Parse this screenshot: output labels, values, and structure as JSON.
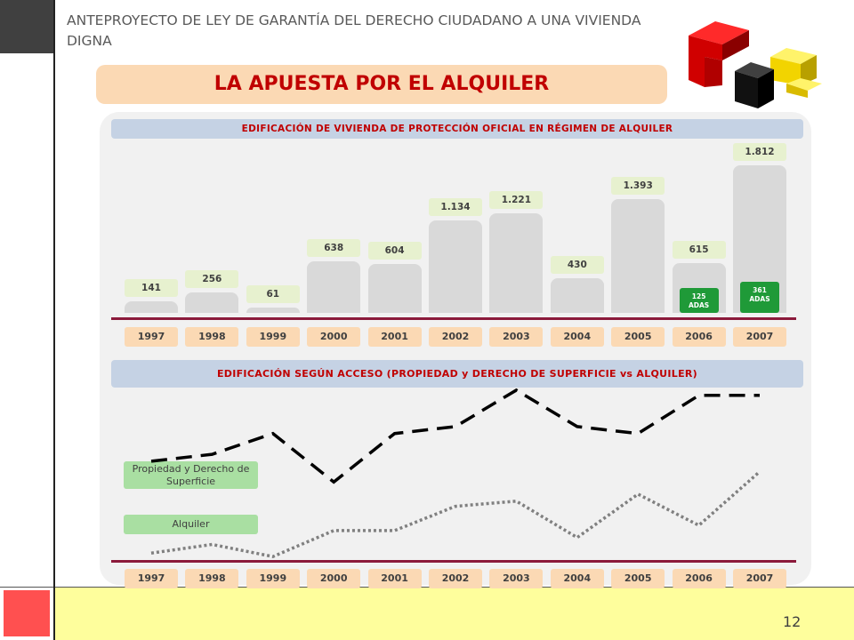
{
  "header": {
    "doc_title": "ANTEPROYECTO DE LEY DE GARANTÍA DEL DERECHO CIUDADANO A UNA VIVIENDA DIGNA",
    "section_title": "LA APUESTA POR EL ALQUILER"
  },
  "colors": {
    "accent_red": "#c00000",
    "bar_gray": "#d9d9d9",
    "adas_green": "#1f9a38",
    "baseline": "#8b1a3b",
    "footer_yellow": "#fefe9c",
    "corner_red": "#ff5050"
  },
  "logo": {
    "icon": "3d-cubes-logo-icon"
  },
  "footer": {
    "page_number": "12"
  },
  "chart_data": [
    {
      "type": "bar",
      "title": "EDIFICACIÓN DE VIVIENDA DE PROTECCIÓN OFICIAL EN RÉGIMEN DE ALQUILER",
      "categories": [
        "1997",
        "1998",
        "1999",
        "2000",
        "2001",
        "2002",
        "2003",
        "2004",
        "2005",
        "2006",
        "2007"
      ],
      "values": [
        141,
        256,
        61,
        638,
        604,
        1134,
        1221,
        430,
        1393,
        615,
        1812
      ],
      "value_labels": [
        "141",
        "256",
        "61",
        "638",
        "604",
        "1.134",
        "1.221",
        "430",
        "1.393",
        "615",
        "1.812"
      ],
      "ylim": [
        0,
        1812
      ],
      "grid": false,
      "annotations": [
        {
          "category": "2006",
          "value": 125,
          "line1": "125",
          "line2": "ADAS"
        },
        {
          "category": "2007",
          "value": 361,
          "line1": "361",
          "line2": "ADAS"
        }
      ]
    },
    {
      "type": "line",
      "title": "EDIFICACIÓN SEGÚN ACCESO (PROPIEDAD y DERECHO DE SUPERFICIE vs ALQUILER)",
      "categories": [
        "1997",
        "1998",
        "1999",
        "2000",
        "2001",
        "2002",
        "2003",
        "2004",
        "2005",
        "2006",
        "2007"
      ],
      "series": [
        {
          "name": "Propiedad y Derecho de Superficie",
          "style": "dashed",
          "color": "#000000",
          "values": [
            0.58,
            0.62,
            0.74,
            0.46,
            0.74,
            0.78,
            0.99,
            0.78,
            0.74,
            0.96,
            0.96
          ]
        },
        {
          "name": "Alquiler",
          "style": "dotted",
          "color": "#808080",
          "values": [
            0.05,
            0.1,
            0.03,
            0.18,
            0.18,
            0.32,
            0.35,
            0.14,
            0.39,
            0.21,
            0.52
          ]
        }
      ],
      "ylim": [
        0,
        1
      ],
      "grid": false,
      "legend": "left"
    }
  ]
}
